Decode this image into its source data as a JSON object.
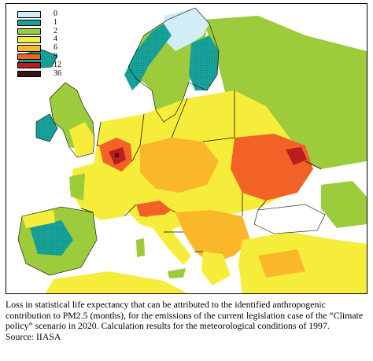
{
  "legend": {
    "entries": [
      {
        "label": "0",
        "color": "#d2ecf8"
      },
      {
        "label": "1",
        "color": "#18a39a"
      },
      {
        "label": "2",
        "color": "#9ccc3c"
      },
      {
        "label": "4",
        "color": "#f6ec3a"
      },
      {
        "label": "6",
        "color": "#fbb72a"
      },
      {
        "label": "9",
        "color": "#f26227"
      },
      {
        "label": "12",
        "color": "#b81e1f"
      },
      {
        "label": "36",
        "color": "#3b1308"
      }
    ]
  },
  "caption": {
    "text": "Loss in statistical life expectancy that can be attributed to the identified anthropogenic contribution to PM2.5 (months), for the emissions of the current legislation case of the “Climate policy” scenario in 2020. Calculation results for the meteorological conditions of 1997.",
    "source": "Source: IIASA"
  },
  "colors": {
    "sea": "#ffffff",
    "border": "#000000"
  }
}
